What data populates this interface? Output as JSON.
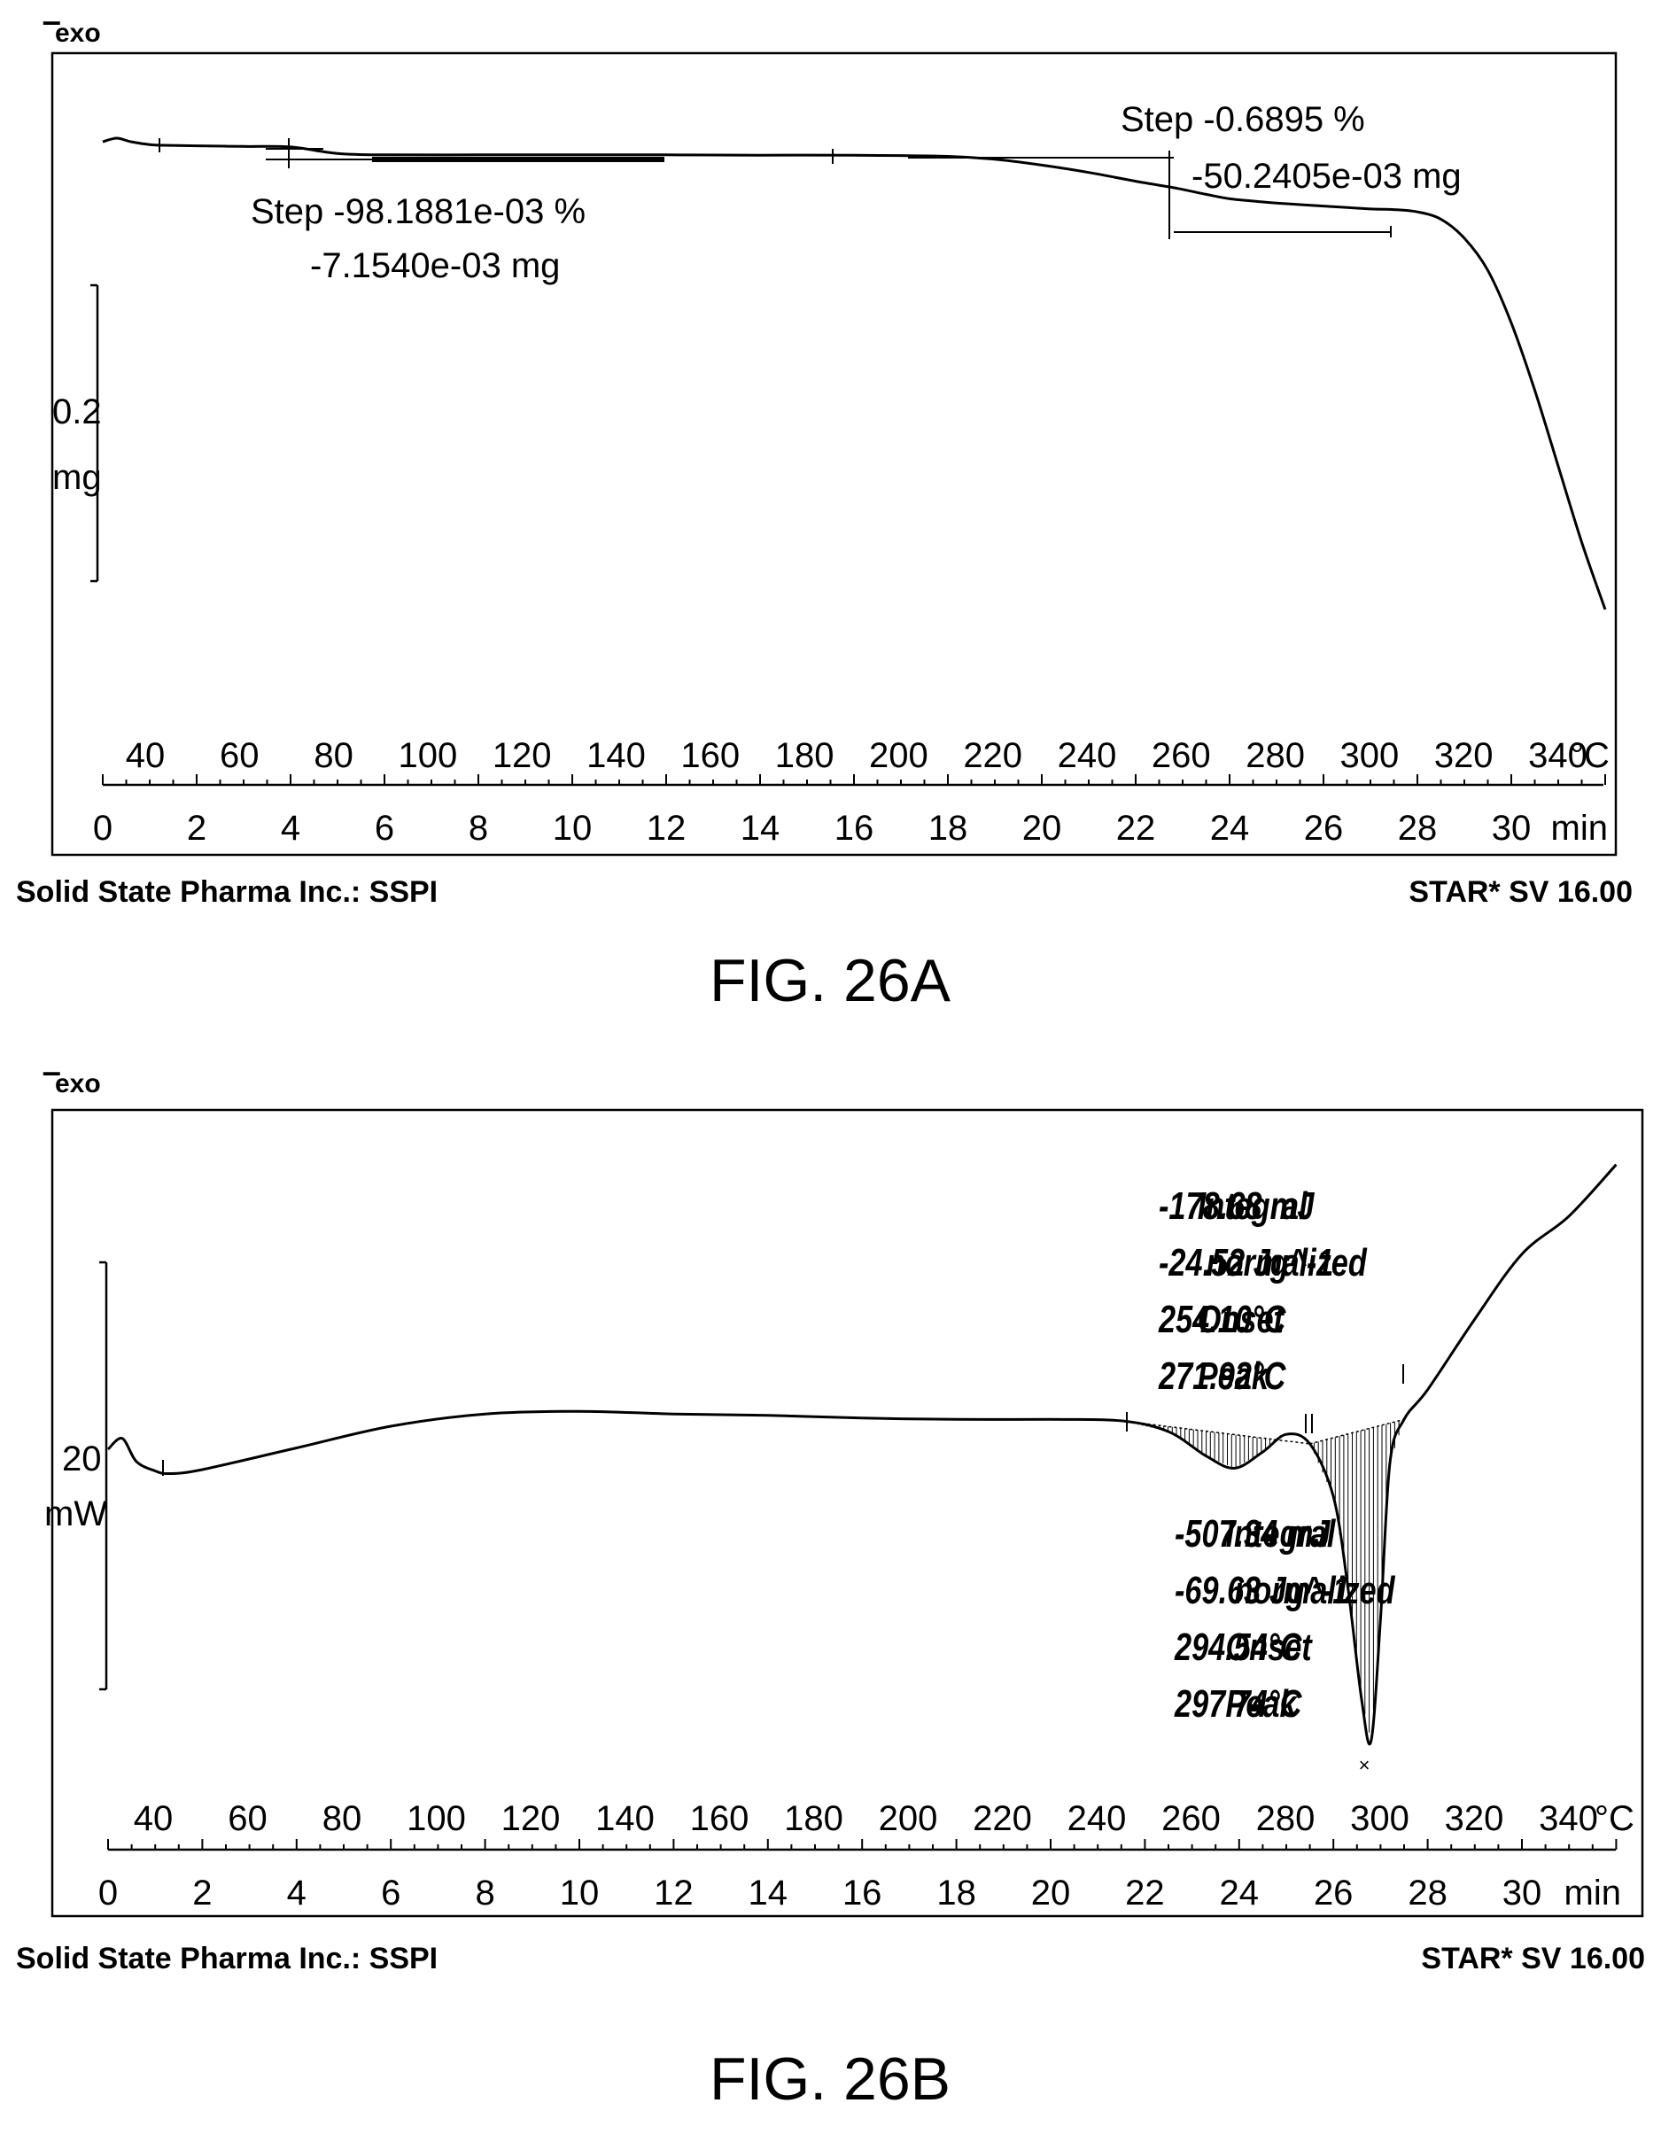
{
  "charts": [
    {
      "type": "line",
      "figure_label": "FIG. 26A",
      "exo_label": "exo",
      "scale_bar": {
        "value": "0.2",
        "unit": "mg"
      },
      "temp_ticks": [
        "40",
        "60",
        "80",
        "100",
        "120",
        "140",
        "160",
        "180",
        "200",
        "220",
        "240",
        "260",
        "280",
        "300",
        "320",
        "340"
      ],
      "temp_unit": "°C",
      "time_ticks": [
        "0",
        "2",
        "4",
        "6",
        "8",
        "10",
        "12",
        "14",
        "16",
        "18",
        "20",
        "22",
        "24",
        "26",
        "28",
        "30"
      ],
      "time_unit": "min",
      "footer_left": "Solid State Pharma Inc.: SSPI",
      "footer_right": "STAR* SV 16.00",
      "annotations": [
        {
          "line1": "Step -98.1881e-03 %",
          "line2": "-7.1540e-03 mg"
        },
        {
          "line1": "Step -0.6895 %",
          "line2": "-50.2405e-03 mg"
        }
      ],
      "chart_data": {
        "type": "line",
        "x_unit": "min",
        "xlim": [
          0,
          32
        ],
        "series": [
          {
            "x": [
              0,
              0.3,
              0.6,
              1.0,
              1.3,
              2,
              3,
              4,
              5,
              6,
              8,
              10,
              12,
              14,
              16,
              18,
              19,
              20,
              21,
              22,
              22.9,
              23.5,
              24,
              24.5,
              25,
              26,
              27,
              27.5,
              28,
              28.5,
              29,
              29.5,
              30,
              30.5,
              31,
              31.5,
              32
            ],
            "y": [
              0,
              0.012,
              0.0,
              -0.01,
              -0.012,
              -0.014,
              -0.016,
              -0.018,
              -0.04,
              -0.045,
              -0.045,
              -0.045,
              -0.045,
              -0.046,
              -0.046,
              -0.05,
              -0.06,
              -0.08,
              -0.105,
              -0.135,
              -0.16,
              -0.18,
              -0.195,
              -0.203,
              -0.21,
              -0.22,
              -0.23,
              -0.232,
              -0.24,
              -0.265,
              -0.33,
              -0.44,
              -0.62,
              -0.85,
              -1.11,
              -1.37,
              -1.6
            ]
          }
        ]
      }
    },
    {
      "type": "line",
      "figure_label": "FIG. 26B",
      "exo_label": "exo",
      "scale_bar": {
        "value": "20",
        "unit": "mW"
      },
      "temp_ticks": [
        "40",
        "60",
        "80",
        "100",
        "120",
        "140",
        "160",
        "180",
        "200",
        "220",
        "240",
        "260",
        "280",
        "300",
        "320",
        "340"
      ],
      "temp_unit": "°C",
      "time_ticks": [
        "0",
        "2",
        "4",
        "6",
        "8",
        "10",
        "12",
        "14",
        "16",
        "18",
        "20",
        "22",
        "24",
        "26",
        "28",
        "30"
      ],
      "time_unit": "min",
      "footer_left": "Solid State Pharma Inc.: SSPI",
      "footer_right": "STAR* SV 16.00",
      "peaks": [
        {
          "rows": [
            {
              "k": "Integral",
              "v": "-178.68 mJ"
            },
            {
              "k": "normalized",
              "v": "-24.52 Jg^-1"
            },
            {
              "k": "Onset",
              "v": "254.10°C"
            },
            {
              "k": "Peak",
              "v": "271.92°C"
            }
          ]
        },
        {
          "rows": [
            {
              "k": "Integral",
              "v": "-507.34 mJ"
            },
            {
              "k": "normalized",
              "v": "-69.63 Jg^-1"
            },
            {
              "k": "Onset",
              "v": "294.54°C"
            },
            {
              "k": "Peak",
              "v": "297.74°C"
            }
          ]
        }
      ],
      "chart_data": {
        "type": "line",
        "x_unit": "min",
        "xlim": [
          0,
          32
        ],
        "series": [
          {
            "x": [
              0,
              0.3,
              0.6,
              1.0,
              1.3,
              2,
              4,
              6,
              8,
              10,
              12,
              14,
              16,
              18,
              20,
              21.5,
              22.5,
              23.3,
              23.9,
              24.5,
              25,
              25.5,
              26,
              26.3,
              26.6,
              26.8,
              27,
              27.2,
              27.5,
              28,
              29,
              30,
              31,
              32
            ],
            "y": [
              0,
              0.8,
              -0.9,
              -1.6,
              -1.8,
              -1.5,
              0.1,
              1.7,
              2.6,
              2.8,
              2.6,
              2.5,
              2.3,
              2.2,
              2.2,
              2.1,
              1.3,
              -0.5,
              -1.4,
              -0.2,
              1.1,
              0.4,
              -3.5,
              -10.0,
              -18.5,
              -21.5,
              -12.5,
              -1.0,
              2.2,
              4.4,
              9.6,
              14.4,
              17.2,
              21.0
            ]
          }
        ]
      }
    }
  ]
}
